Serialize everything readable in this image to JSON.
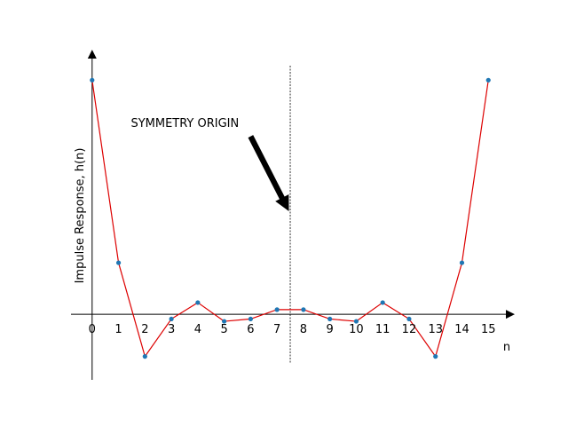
{
  "chart_data": {
    "type": "line",
    "title": "",
    "xlabel": "n",
    "ylabel": "Impulse Response, h(n)",
    "x": [
      0,
      1,
      2,
      3,
      4,
      5,
      6,
      7,
      8,
      9,
      10,
      11,
      12,
      13,
      14,
      15
    ],
    "series": [
      {
        "values": [
          1.0,
          0.22,
          -0.18,
          -0.02,
          0.05,
          -0.03,
          -0.02,
          0.02,
          0.02,
          -0.02,
          -0.03,
          0.05,
          -0.02,
          -0.18,
          0.22,
          1.0
        ]
      }
    ],
    "xlim": [
      -0.8,
      16.0
    ],
    "ylim": [
      -0.28,
      1.13
    ],
    "symmetry_x": 7.5,
    "annotation": {
      "text": "SYMMETRY ORIGIN",
      "text_x": 1.5,
      "text_y": 0.82,
      "arrow_tail": [
        6.0,
        0.76
      ],
      "arrow_head": [
        7.45,
        0.44
      ]
    },
    "colors": {
      "line": "#dd0000",
      "marker": "#1f77b4",
      "axis": "#000000"
    },
    "grid": false,
    "legend": "none"
  }
}
